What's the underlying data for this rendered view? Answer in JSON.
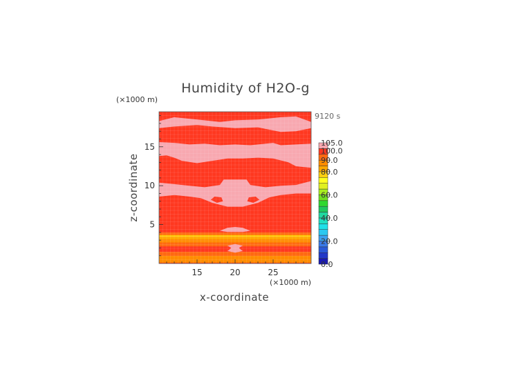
{
  "chart_data": {
    "type": "heatmap",
    "title": "Humidity of H2O-g",
    "xlabel": "x-coordinate",
    "ylabel": "z-coordinate",
    "x_unit_label": "(×1000 m)",
    "z_unit_label": "(×1000 m)",
    "time_label": "9120 s",
    "xlim": [
      10,
      30
    ],
    "ylim": [
      0,
      19.5
    ],
    "x_ticks": [
      15,
      20,
      25
    ],
    "y_ticks": [
      5,
      10,
      15
    ],
    "colorbar": {
      "levels": [
        0,
        5,
        10,
        15,
        20,
        25,
        30,
        35,
        40,
        45,
        50,
        55,
        60,
        65,
        70,
        75,
        80,
        85,
        90,
        95,
        100,
        105
      ],
      "colors": [
        "#1a1ab0",
        "#2238c8",
        "#2a5ad8",
        "#3a7ae8",
        "#3aa0f0",
        "#2ac8f0",
        "#20e0e8",
        "#20e0c0",
        "#20d8a0",
        "#20c860",
        "#30d830",
        "#70e020",
        "#a8ee20",
        "#e0f020",
        "#ffff20",
        "#ffd010",
        "#ffa800",
        "#ff8c00",
        "#ff6a10",
        "#ff3820",
        "#f8a8b0"
      ],
      "tick_labels": [
        "0.0",
        "20.0",
        "40.0",
        "60.0",
        "80.0",
        "90.0",
        "100.0",
        "105.0"
      ],
      "tick_values": [
        0,
        20,
        40,
        60,
        80,
        90,
        100,
        105
      ]
    },
    "field": [
      {
        "x1": 10,
        "x2": 30,
        "z1": 0,
        "z2": 19.5,
        "value": 97
      },
      {
        "x1": 10,
        "x2": 30,
        "z1": 0.1,
        "z2": 1.0,
        "value": 86
      },
      {
        "x1": 10,
        "x2": 30,
        "z1": 1.0,
        "z2": 1.5,
        "value": 91
      },
      {
        "x1": 10,
        "x2": 30,
        "z1": 2.2,
        "z2": 2.7,
        "value": 91
      },
      {
        "x1": 10,
        "x2": 30,
        "z1": 2.7,
        "z2": 3.1,
        "value": 86
      },
      {
        "x1": 10,
        "x2": 30,
        "z1": 3.1,
        "z2": 3.7,
        "value": 81
      },
      {
        "x1": 10,
        "x2": 30,
        "z1": 3.45,
        "z2": 3.6,
        "value": 78
      },
      {
        "x1": 10,
        "x2": 30,
        "z1": 3.7,
        "z2": 4.0,
        "value": 91
      }
    ],
    "high_regions": [
      {
        "value": 101,
        "points": [
          [
            10,
            18.3
          ],
          [
            12,
            18.8
          ],
          [
            15,
            18.5
          ],
          [
            18,
            18.2
          ],
          [
            20,
            18.4
          ],
          [
            23,
            18.5
          ],
          [
            26,
            18.8
          ],
          [
            28,
            18.9
          ],
          [
            30,
            18.2
          ],
          [
            30,
            17.4
          ],
          [
            28,
            17.0
          ],
          [
            26,
            16.9
          ],
          [
            23,
            17.5
          ],
          [
            20,
            17.4
          ],
          [
            17,
            17.6
          ],
          [
            15,
            17.8
          ],
          [
            12,
            17.6
          ],
          [
            10,
            17.4
          ]
        ]
      },
      {
        "value": 101,
        "points": [
          [
            10,
            15.6
          ],
          [
            12,
            15.5
          ],
          [
            14,
            15.3
          ],
          [
            16,
            15.4
          ],
          [
            18,
            15.2
          ],
          [
            20,
            15.3
          ],
          [
            22,
            15.2
          ],
          [
            24,
            15.4
          ],
          [
            25,
            15.5
          ],
          [
            26,
            15.2
          ],
          [
            28,
            15.3
          ],
          [
            30,
            15.4
          ],
          [
            30,
            12.3
          ],
          [
            28,
            12.5
          ],
          [
            27,
            13.0
          ],
          [
            25,
            13.5
          ],
          [
            23,
            13.6
          ],
          [
            21,
            13.5
          ],
          [
            19,
            13.5
          ],
          [
            17,
            13.2
          ],
          [
            15,
            12.9
          ],
          [
            13,
            13.2
          ],
          [
            12,
            13.6
          ],
          [
            11,
            13.9
          ],
          [
            10,
            13.8
          ]
        ]
      },
      {
        "value": 101,
        "points": [
          [
            10,
            10.4
          ],
          [
            12,
            10.2
          ],
          [
            14,
            10.0
          ],
          [
            16,
            9.8
          ],
          [
            18,
            10.1
          ],
          [
            18.5,
            10.8
          ],
          [
            21.5,
            10.8
          ],
          [
            22,
            10.1
          ],
          [
            24,
            9.8
          ],
          [
            26,
            10.0
          ],
          [
            28,
            10.1
          ],
          [
            30,
            10.6
          ],
          [
            30,
            9.0
          ],
          [
            28,
            9.0
          ],
          [
            26,
            8.8
          ],
          [
            24.5,
            8.5
          ],
          [
            23,
            7.8
          ],
          [
            21,
            7.3
          ],
          [
            19,
            7.3
          ],
          [
            17,
            7.8
          ],
          [
            15.5,
            8.4
          ],
          [
            14,
            8.6
          ],
          [
            12,
            8.8
          ],
          [
            10,
            8.6
          ]
        ]
      },
      {
        "value": 101,
        "points": [
          [
            18,
            4.2
          ],
          [
            19,
            4.6
          ],
          [
            20,
            4.7
          ],
          [
            21,
            4.6
          ],
          [
            22,
            4.2
          ],
          [
            21,
            4.05
          ],
          [
            19,
            4.05
          ]
        ]
      },
      {
        "value": 101,
        "points": [
          [
            19,
            2.3
          ],
          [
            20,
            2.5
          ],
          [
            21,
            2.3
          ],
          [
            20.5,
            2.0
          ],
          [
            21,
            1.6
          ],
          [
            20,
            1.4
          ],
          [
            19,
            1.6
          ],
          [
            19.5,
            2.0
          ]
        ]
      }
    ],
    "holes": [
      {
        "value": 97,
        "points": [
          [
            16.8,
            8.2
          ],
          [
            17.3,
            8.6
          ],
          [
            18.2,
            8.5
          ],
          [
            18.4,
            8.0
          ],
          [
            17.6,
            7.8
          ]
        ]
      },
      {
        "value": 97,
        "points": [
          [
            21.6,
            8.0
          ],
          [
            21.8,
            8.5
          ],
          [
            22.7,
            8.6
          ],
          [
            23.2,
            8.2
          ],
          [
            22.4,
            7.8
          ]
        ]
      }
    ]
  }
}
